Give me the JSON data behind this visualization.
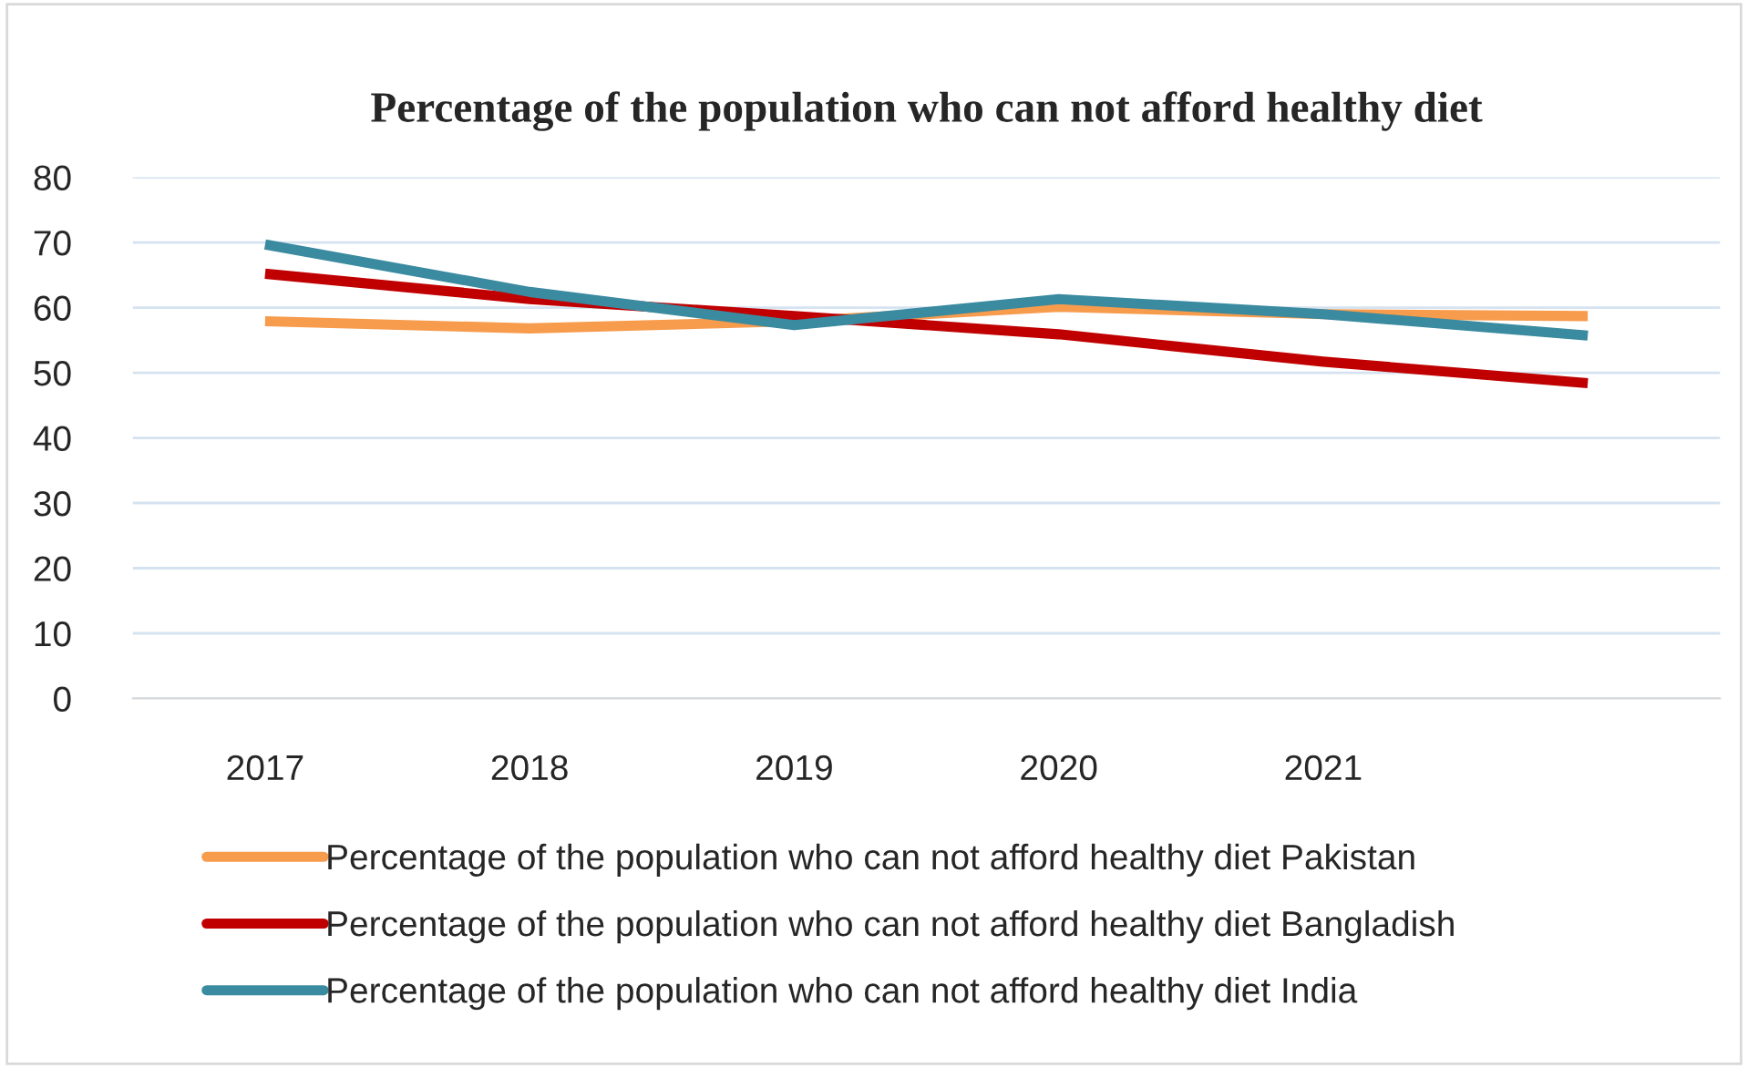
{
  "chart_data": {
    "type": "line",
    "title": "Percentage of the population who can not afford healthy diet",
    "categories": [
      "2017",
      "2018",
      "2019",
      "2020",
      "2021",
      null
    ],
    "series": [
      {
        "name": "Percentage of the population who can not afford healthy diet Pakistan",
        "color": "#f79b4c",
        "values": [
          57.9,
          56.8,
          57.9,
          60.1,
          59.0,
          58.7
        ]
      },
      {
        "name": "Percentage of the population who can not afford healthy diet Bangladish",
        "color": "#c00000",
        "values": [
          65.2,
          61.3,
          58.7,
          55.9,
          51.7,
          48.4
        ]
      },
      {
        "name": "Percentage of the population who can not afford healthy diet India",
        "color": "#3a8aa0",
        "values": [
          69.7,
          62.4,
          57.3,
          61.3,
          59.0,
          55.7
        ]
      }
    ],
    "ylim": [
      0,
      80
    ],
    "yticks": [
      0,
      10,
      20,
      30,
      40,
      50,
      60,
      70,
      80
    ],
    "grid": "y",
    "legend": "bottom",
    "marker": "none",
    "line_style": "solid"
  }
}
